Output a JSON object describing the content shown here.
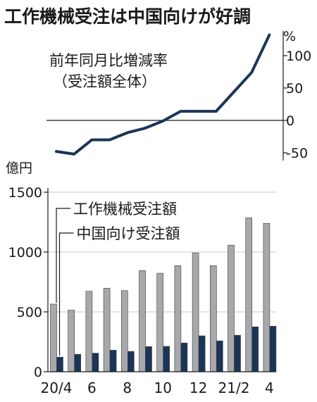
{
  "title": "工作機械受注は中国向けが好調",
  "chart_data": [
    {
      "type": "line",
      "title": "前年同月比増減率",
      "subtitle": "（受注額全体）",
      "ylabel": "%",
      "yticks": [
        100,
        50,
        0,
        -50
      ],
      "ylim": [
        -62,
        138
      ],
      "x": [
        "20/4",
        "20/5",
        "20/6",
        "20/7",
        "20/8",
        "20/9",
        "20/10",
        "20/11",
        "20/12",
        "21/1",
        "21/2",
        "21/3",
        "21/4"
      ],
      "values": [
        -48,
        -52,
        -30,
        -30,
        -19,
        -12,
        -1,
        14,
        14,
        14,
        44,
        74,
        132
      ],
      "color": "#1c3557"
    },
    {
      "type": "bar",
      "ylabel": "億円",
      "yticks": [
        0,
        500,
        1000,
        1500
      ],
      "ylim": [
        0,
        1500
      ],
      "categories": [
        "20/4",
        "20/5",
        "20/6",
        "20/7",
        "20/8",
        "20/9",
        "20/10",
        "20/11",
        "20/12",
        "21/1",
        "21/2",
        "21/3",
        "21/4"
      ],
      "xtick_labels": [
        "20/4",
        "6",
        "8",
        "10",
        "12",
        "21/2",
        "4"
      ],
      "xtick_indices": [
        0,
        2,
        4,
        6,
        8,
        10,
        12
      ],
      "series": [
        {
          "name": "工作機械受注額",
          "color": "#a8a8ac",
          "values": [
            565,
            515,
            672,
            698,
            678,
            845,
            823,
            886,
            993,
            886,
            1058,
            1286,
            1240
          ]
        },
        {
          "name": "中国向け受注額",
          "color": "#1c3557",
          "values": [
            122,
            146,
            155,
            180,
            170,
            210,
            212,
            240,
            300,
            258,
            305,
            375,
            380
          ]
        }
      ]
    }
  ]
}
